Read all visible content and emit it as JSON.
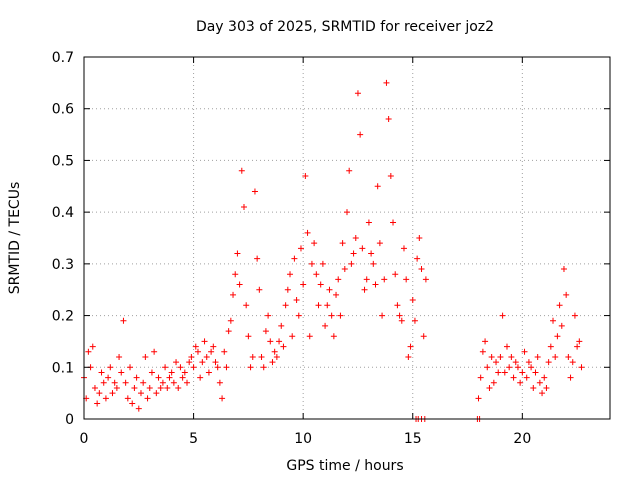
{
  "chart_data": {
    "type": "scatter",
    "title": "Day 303 of 2025, SRMTID for receiver joz2",
    "xlabel": "GPS time / hours",
    "ylabel": "SRMTID / TECUs",
    "xlim": [
      0,
      24
    ],
    "ylim": [
      0,
      0.7
    ],
    "xticks": [
      0,
      5,
      10,
      15,
      20
    ],
    "yticks": [
      0,
      0.1,
      0.2,
      0.3,
      0.4,
      0.5,
      0.6,
      0.7
    ],
    "grid": true,
    "marker": "+",
    "series_color": "#ff0000",
    "series": [
      {
        "name": "SRMTID",
        "x": [
          0.0,
          0.1,
          0.2,
          0.3,
          0.4,
          0.5,
          0.6,
          0.7,
          0.8,
          0.9,
          1.0,
          1.1,
          1.2,
          1.3,
          1.4,
          1.5,
          1.6,
          1.7,
          1.8,
          1.9,
          2.0,
          2.1,
          2.2,
          2.3,
          2.4,
          2.5,
          2.6,
          2.7,
          2.8,
          2.9,
          3.0,
          3.1,
          3.2,
          3.3,
          3.4,
          3.5,
          3.6,
          3.7,
          3.8,
          3.9,
          4.0,
          4.1,
          4.2,
          4.3,
          4.4,
          4.5,
          4.6,
          4.7,
          4.8,
          4.9,
          5.0,
          5.1,
          5.2,
          5.3,
          5.4,
          5.5,
          5.6,
          5.7,
          5.8,
          5.9,
          6.0,
          6.1,
          6.2,
          6.3,
          6.4,
          6.5,
          6.6,
          6.7,
          6.8,
          6.9,
          7.0,
          7.1,
          7.2,
          7.3,
          7.4,
          7.5,
          7.6,
          7.7,
          7.8,
          7.9,
          8.0,
          8.1,
          8.2,
          8.3,
          8.4,
          8.5,
          8.6,
          8.7,
          8.8,
          8.9,
          9.0,
          9.1,
          9.2,
          9.3,
          9.4,
          9.5,
          9.6,
          9.7,
          9.8,
          9.9,
          10.0,
          10.1,
          10.2,
          10.3,
          10.4,
          10.5,
          10.6,
          10.7,
          10.8,
          10.9,
          11.0,
          11.1,
          11.2,
          11.3,
          11.4,
          11.5,
          11.6,
          11.7,
          11.8,
          11.9,
          12.0,
          12.1,
          12.2,
          12.3,
          12.4,
          12.5,
          12.6,
          12.7,
          12.8,
          12.9,
          13.0,
          13.1,
          13.2,
          13.3,
          13.4,
          13.5,
          13.6,
          13.7,
          13.8,
          13.9,
          14.0,
          14.1,
          14.2,
          14.3,
          14.4,
          14.5,
          14.6,
          14.7,
          14.8,
          14.9,
          15.0,
          15.1,
          15.2,
          15.3,
          15.4,
          15.5,
          15.6,
          18.0,
          18.1,
          18.2,
          18.3,
          18.4,
          18.5,
          18.6,
          18.7,
          18.8,
          18.9,
          19.0,
          19.1,
          19.2,
          19.3,
          19.4,
          19.5,
          19.6,
          19.7,
          19.8,
          19.9,
          20.0,
          20.1,
          20.2,
          20.3,
          20.4,
          20.5,
          20.6,
          20.7,
          20.8,
          20.9,
          21.0,
          21.1,
          21.2,
          21.3,
          21.4,
          21.5,
          21.6,
          21.7,
          21.8,
          21.9,
          22.0,
          22.1,
          22.2,
          22.3,
          22.4,
          22.5,
          22.6,
          22.7,
          15.15,
          15.25,
          15.4,
          15.55,
          17.95,
          18.05
        ],
        "y": [
          0.08,
          0.04,
          0.13,
          0.1,
          0.14,
          0.06,
          0.03,
          0.05,
          0.09,
          0.07,
          0.04,
          0.08,
          0.1,
          0.05,
          0.07,
          0.06,
          0.12,
          0.09,
          0.19,
          0.07,
          0.04,
          0.1,
          0.03,
          0.06,
          0.08,
          0.02,
          0.05,
          0.07,
          0.12,
          0.04,
          0.06,
          0.09,
          0.13,
          0.05,
          0.08,
          0.06,
          0.07,
          0.1,
          0.06,
          0.08,
          0.09,
          0.07,
          0.11,
          0.06,
          0.1,
          0.08,
          0.09,
          0.07,
          0.11,
          0.12,
          0.1,
          0.14,
          0.13,
          0.08,
          0.11,
          0.15,
          0.12,
          0.09,
          0.13,
          0.14,
          0.11,
          0.1,
          0.07,
          0.04,
          0.13,
          0.1,
          0.17,
          0.19,
          0.24,
          0.28,
          0.32,
          0.26,
          0.48,
          0.41,
          0.22,
          0.16,
          0.1,
          0.12,
          0.44,
          0.31,
          0.25,
          0.12,
          0.1,
          0.17,
          0.2,
          0.15,
          0.11,
          0.13,
          0.12,
          0.15,
          0.18,
          0.14,
          0.22,
          0.25,
          0.28,
          0.16,
          0.31,
          0.23,
          0.2,
          0.33,
          0.26,
          0.47,
          0.36,
          0.16,
          0.3,
          0.34,
          0.28,
          0.22,
          0.26,
          0.3,
          0.18,
          0.22,
          0.25,
          0.2,
          0.16,
          0.24,
          0.27,
          0.2,
          0.34,
          0.29,
          0.4,
          0.48,
          0.3,
          0.32,
          0.35,
          0.63,
          0.55,
          0.33,
          0.25,
          0.27,
          0.38,
          0.32,
          0.3,
          0.26,
          0.45,
          0.34,
          0.2,
          0.27,
          0.65,
          0.58,
          0.47,
          0.38,
          0.28,
          0.22,
          0.2,
          0.19,
          0.33,
          0.27,
          0.12,
          0.14,
          0.23,
          0.19,
          0.31,
          0.35,
          0.29,
          0.16,
          0.27,
          0.04,
          0.08,
          0.13,
          0.15,
          0.1,
          0.06,
          0.12,
          0.07,
          0.11,
          0.09,
          0.12,
          0.2,
          0.09,
          0.14,
          0.1,
          0.12,
          0.08,
          0.11,
          0.1,
          0.07,
          0.09,
          0.13,
          0.08,
          0.11,
          0.1,
          0.06,
          0.09,
          0.12,
          0.07,
          0.05,
          0.08,
          0.06,
          0.11,
          0.14,
          0.19,
          0.12,
          0.16,
          0.22,
          0.18,
          0.29,
          0.24,
          0.12,
          0.08,
          0.11,
          0.2,
          0.14,
          0.15,
          0.1,
          0.0,
          0.0,
          0.0,
          0.0,
          0.0,
          0.0
        ]
      }
    ]
  }
}
